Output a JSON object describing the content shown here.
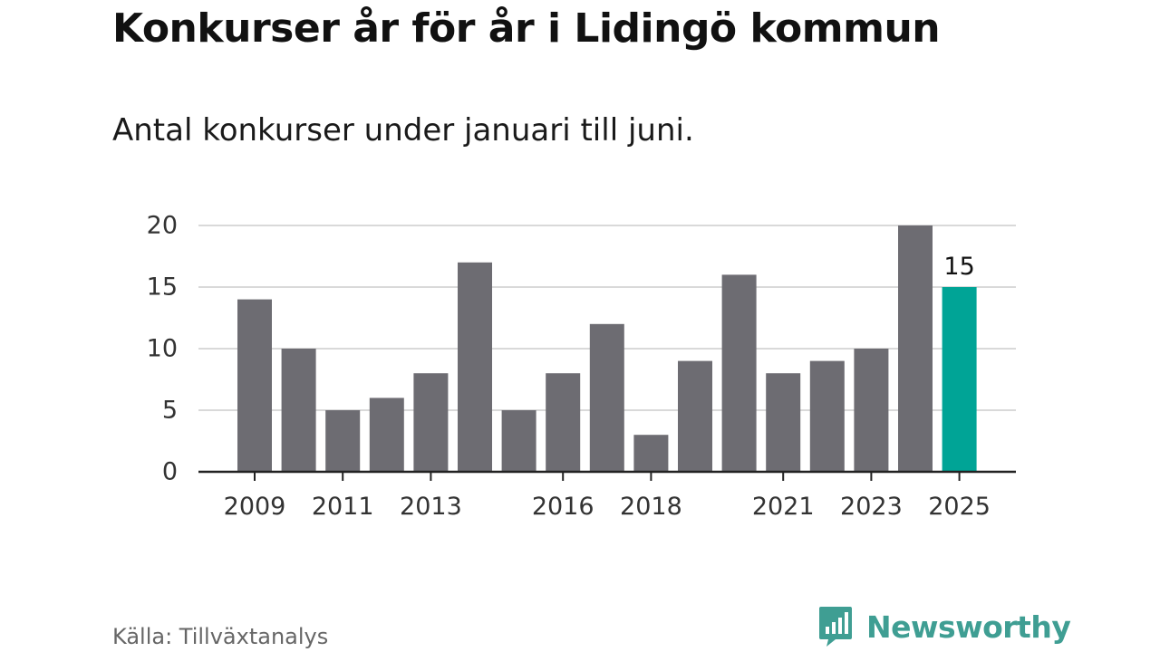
{
  "header": {
    "title": "Konkurser år för år i Lidingö kommun",
    "subtitle": "Antal konkurser under januari till juni."
  },
  "footer": {
    "source": "Källa: Tillväxtanalys",
    "brand": "Newsworthy",
    "brand_icon": "bar-chart-speech-bubble-icon"
  },
  "colors": {
    "bar": "#6d6c72",
    "highlight": "#00a496",
    "grid": "#d9d9d9",
    "axis": "#222222",
    "brand": "#3f9e93"
  },
  "chart_data": {
    "type": "bar",
    "categories": [
      "2009",
      "2010",
      "2011",
      "2012",
      "2013",
      "2014",
      "2015",
      "2016",
      "2017",
      "2018",
      "2019",
      "2020",
      "2021",
      "2022",
      "2023",
      "2024",
      "2025"
    ],
    "values": [
      14,
      10,
      5,
      6,
      8,
      17,
      5,
      8,
      12,
      3,
      9,
      16,
      8,
      9,
      10,
      20,
      15
    ],
    "x_tick_labels": [
      "2009",
      "2011",
      "2013",
      "2016",
      "2018",
      "2021",
      "2023",
      "2025"
    ],
    "y_ticks": [
      "0",
      "5",
      "10",
      "15",
      "20"
    ],
    "ylim": [
      0,
      20
    ],
    "highlight_category": "2025",
    "data_labels": [
      {
        "category": "2025",
        "text": "15"
      }
    ],
    "grid": true,
    "legend": "none",
    "xlabel": "",
    "ylabel": ""
  }
}
